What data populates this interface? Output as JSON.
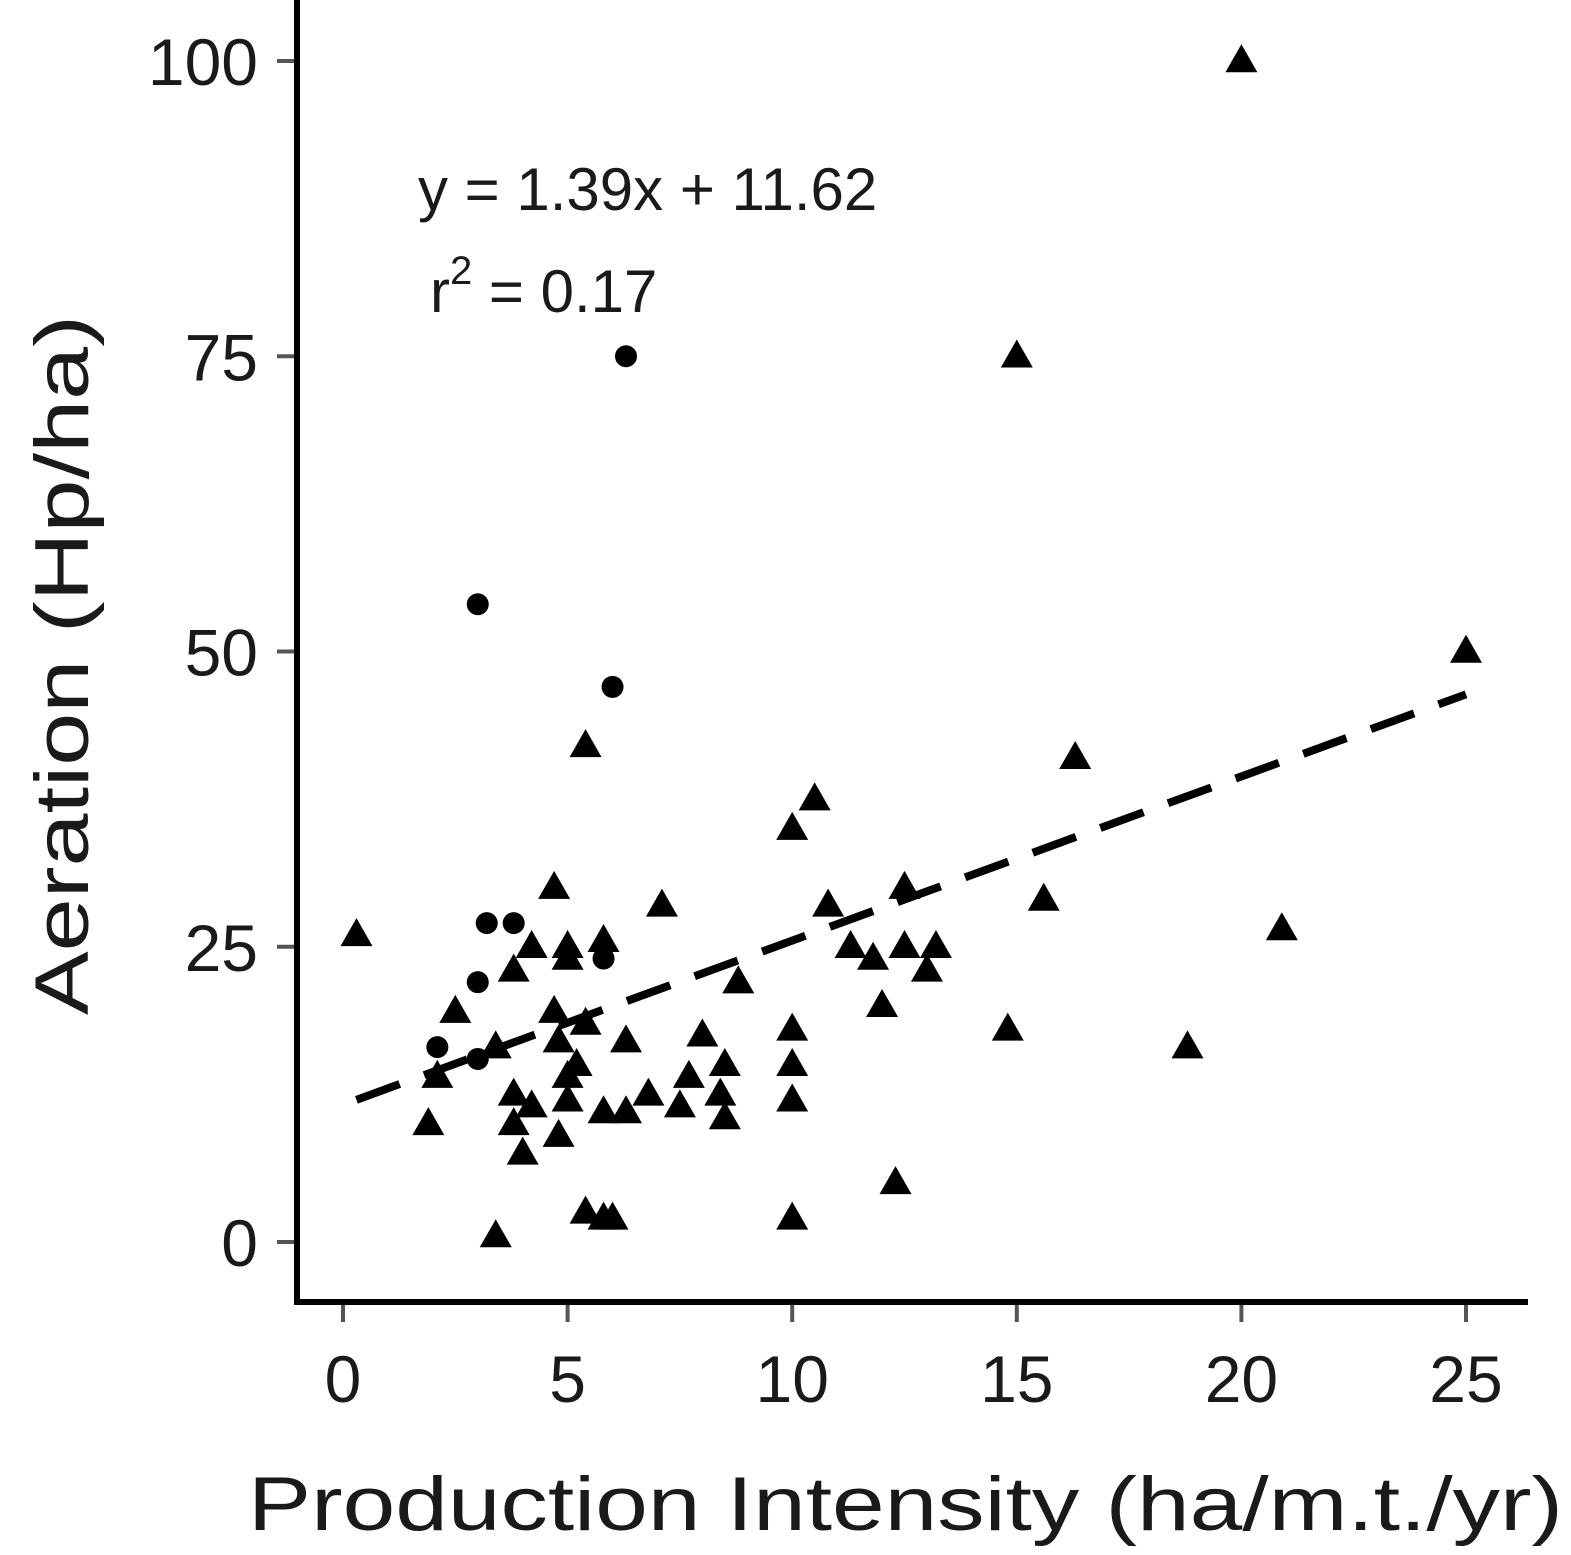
{
  "chart_data": {
    "type": "scatter",
    "title": "",
    "xlabel": "Production Intensity (ha/m.t./yr)",
    "ylabel": "Aeration (Hp/ha)",
    "xlim": [
      -1,
      26
    ],
    "ylim": [
      -5,
      105
    ],
    "xticks": [
      "0",
      "5",
      "10",
      "15",
      "20",
      "25"
    ],
    "yticks": [
      "0",
      "25",
      "50",
      "75",
      "100"
    ],
    "grid": false,
    "legend": "none",
    "color": "#000000",
    "series": [
      {
        "marker": "circle",
        "points": [
          [
            6.3,
            75
          ],
          [
            3.0,
            54
          ],
          [
            6.0,
            47
          ],
          [
            3.2,
            27
          ],
          [
            3.8,
            27
          ],
          [
            3.0,
            22
          ],
          [
            5.8,
            24
          ],
          [
            2.1,
            16.5
          ],
          [
            3.0,
            15.5
          ]
        ]
      },
      {
        "marker": "triangle",
        "points": [
          [
            20.0,
            100
          ],
          [
            15.0,
            75
          ],
          [
            25.0,
            50
          ],
          [
            5.4,
            42
          ],
          [
            16.3,
            41
          ],
          [
            10.5,
            37.5
          ],
          [
            10.0,
            35
          ],
          [
            4.7,
            30
          ],
          [
            12.5,
            30
          ],
          [
            7.1,
            28.5
          ],
          [
            10.8,
            28.5
          ],
          [
            15.6,
            29
          ],
          [
            20.9,
            26.5
          ],
          [
            0.3,
            26
          ],
          [
            4.2,
            25
          ],
          [
            5.0,
            25
          ],
          [
            5.8,
            25.5
          ],
          [
            11.3,
            25
          ],
          [
            12.5,
            25
          ],
          [
            13.2,
            25
          ],
          [
            5.0,
            24
          ],
          [
            11.8,
            24
          ],
          [
            3.8,
            23
          ],
          [
            13.0,
            23
          ],
          [
            8.8,
            22
          ],
          [
            2.5,
            19.5
          ],
          [
            12.0,
            20
          ],
          [
            4.7,
            19.5
          ],
          [
            5.4,
            18.5
          ],
          [
            4.8,
            17
          ],
          [
            6.3,
            17
          ],
          [
            8.0,
            17.5
          ],
          [
            10.0,
            18
          ],
          [
            14.8,
            18
          ],
          [
            3.4,
            16.5
          ],
          [
            18.8,
            16.5
          ],
          [
            5.2,
            15
          ],
          [
            8.5,
            15
          ],
          [
            10.0,
            15
          ],
          [
            2.1,
            14
          ],
          [
            5.0,
            14
          ],
          [
            7.7,
            14
          ],
          [
            3.8,
            12.5
          ],
          [
            6.8,
            12.5
          ],
          [
            8.4,
            12.5
          ],
          [
            4.2,
            11.5
          ],
          [
            5.0,
            12
          ],
          [
            5.8,
            11
          ],
          [
            6.3,
            11
          ],
          [
            7.5,
            11.5
          ],
          [
            10.0,
            12
          ],
          [
            1.9,
            10
          ],
          [
            3.8,
            10
          ],
          [
            4.8,
            9
          ],
          [
            8.5,
            10.5
          ],
          [
            4.0,
            7.5
          ],
          [
            12.3,
            5
          ],
          [
            5.4,
            2.5
          ],
          [
            5.8,
            2
          ],
          [
            6.0,
            2
          ],
          [
            10.0,
            2
          ],
          [
            3.4,
            0.5
          ]
        ]
      }
    ],
    "trendline": {
      "style": "dashed",
      "slope": 1.39,
      "intercept": 11.62,
      "x_range": [
        0.3,
        25
      ]
    },
    "annotations": {
      "equation": "y = 1.39x + 11.62",
      "r2_symbol": "r",
      "r2_exponent": "2",
      "r2_rest": " = 0.17"
    }
  }
}
